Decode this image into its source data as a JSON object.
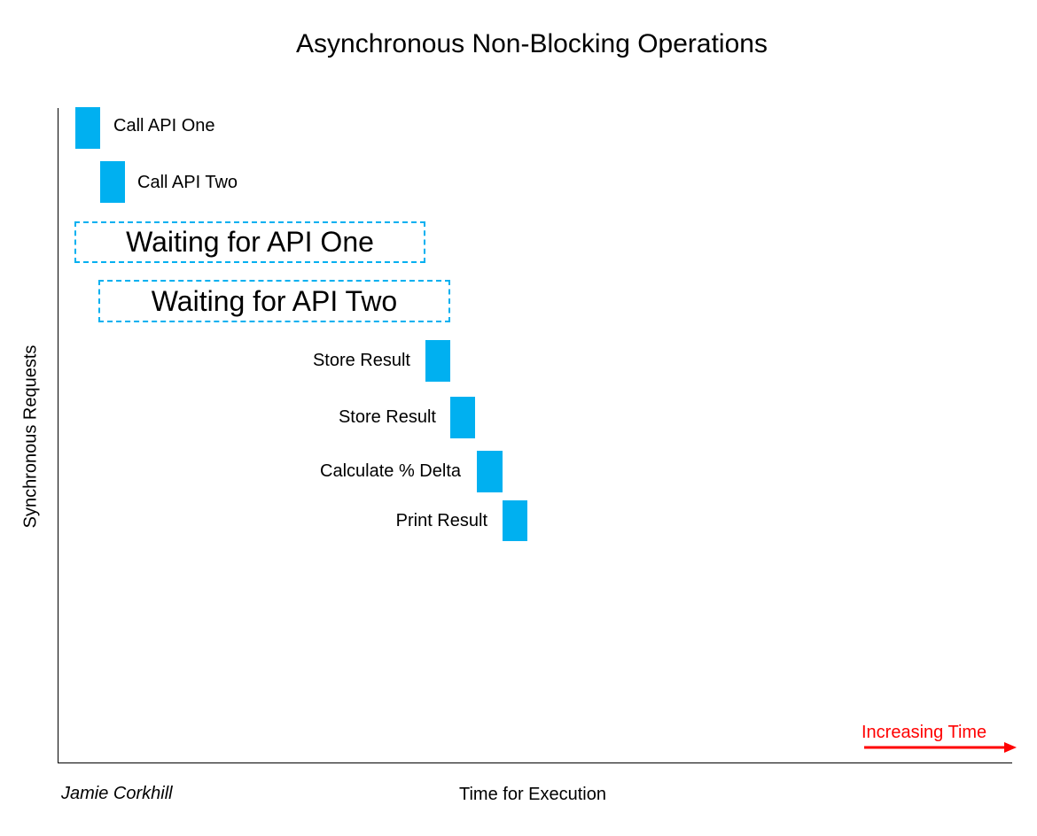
{
  "title": "Asynchronous Non-Blocking Operations",
  "y_axis_label": "Synchronous Requests",
  "x_axis_label": "Time for Execution",
  "author": "Jamie Corkhill",
  "time_indicator": {
    "label": "Increasing Time",
    "color": "#ff0000"
  },
  "colors": {
    "task": "#00b0f0",
    "wait_border": "#00b0f0"
  },
  "steps": {
    "call_api_one": "Call API One",
    "call_api_two": "Call API Two",
    "wait_api_one": "Waiting for API One",
    "wait_api_two": "Waiting for API Two",
    "store_result_one": "Store Result",
    "store_result_two": "Store Result",
    "calc_delta": "Calculate % Delta",
    "print_result": "Print Result"
  }
}
